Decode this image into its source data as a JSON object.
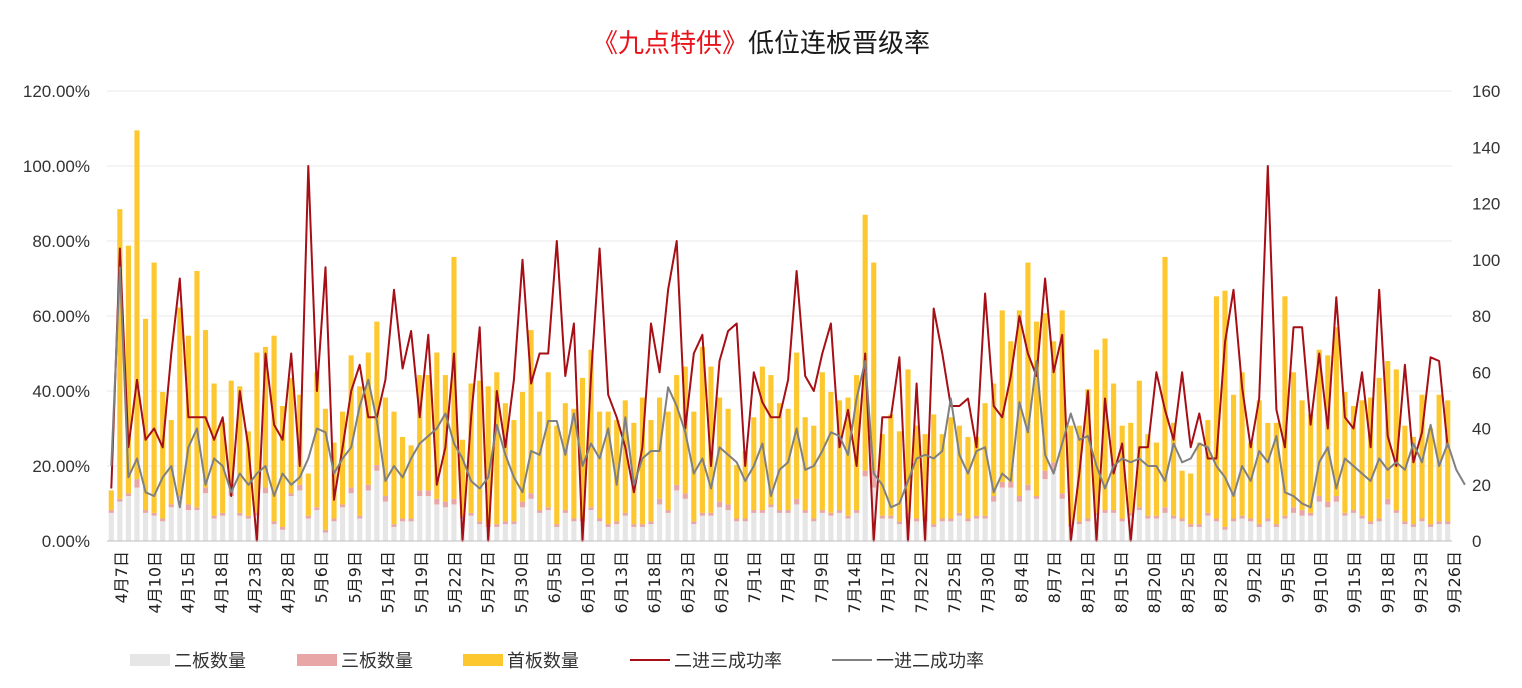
{
  "chart_data": {
    "type": "bar",
    "title_parts": [
      {
        "text": "《九点特供》",
        "color": "#e8141b"
      },
      {
        "text": "低位连板晋级率",
        "color": "#1a1a1a"
      }
    ],
    "y_left": {
      "min": 0,
      "max": 1.2,
      "ticks": [
        "0.00%",
        "20.00%",
        "40.00%",
        "60.00%",
        "80.00%",
        "100.00%",
        "120.00%"
      ]
    },
    "y_right": {
      "min": 0,
      "max": 160,
      "ticks": [
        "0",
        "20",
        "40",
        "60",
        "80",
        "100",
        "120",
        "140",
        "160"
      ]
    },
    "grid": true,
    "legend_position": "bottom",
    "x_tick_labels": [
      "4月7日",
      "4月10日",
      "4月15日",
      "4月18日",
      "4月23日",
      "4月28日",
      "5月6日",
      "5月9日",
      "5月14日",
      "5月19日",
      "5月22日",
      "5月27日",
      "5月30日",
      "6月5日",
      "6月10日",
      "6月13日",
      "6月18日",
      "6月23日",
      "6月26日",
      "7月1日",
      "7月4日",
      "7月9日",
      "7月14日",
      "7月17日",
      "7月22日",
      "7月25日",
      "7月30日",
      "8月4日",
      "8月7日",
      "8月12日",
      "8月15日",
      "8月20日",
      "8月25日",
      "8月28日",
      "9月2日",
      "9月5日",
      "9月10日",
      "9月15日",
      "9月18日",
      "9月23日",
      "9月26日"
    ],
    "series": [
      {
        "name": "二板数量",
        "kind": "bar",
        "axis": "right",
        "color": "#e6e6e6",
        "values": [
          10,
          14,
          16,
          19,
          10,
          9,
          7,
          12,
          15,
          11,
          11,
          17,
          8,
          9,
          16,
          9,
          8,
          9,
          17,
          6,
          4,
          16,
          18,
          8,
          11,
          3,
          7,
          12,
          17,
          8,
          18,
          25,
          14,
          5,
          7,
          7,
          16,
          16,
          13,
          12,
          13,
          8,
          9,
          6,
          5,
          5,
          6,
          6,
          12,
          15,
          10,
          11,
          5,
          10,
          7,
          7,
          11,
          7,
          5,
          6,
          9,
          5,
          5,
          6,
          13,
          10,
          18,
          15,
          6,
          9,
          9,
          12,
          11,
          7,
          7,
          10,
          10,
          12,
          10,
          10,
          13,
          10,
          7,
          10,
          9,
          10,
          8,
          10,
          23,
          19,
          8,
          8,
          6,
          8,
          7,
          7,
          5,
          7,
          7,
          9,
          7,
          8,
          8,
          14,
          19,
          19,
          14,
          18,
          15,
          22,
          25,
          15,
          5,
          6,
          7,
          9,
          10,
          10,
          7,
          9,
          11,
          8,
          8,
          10,
          8,
          7,
          5,
          5,
          9,
          7,
          4,
          7,
          8,
          7,
          5,
          7,
          5,
          8,
          10,
          9,
          9,
          14,
          12,
          14,
          9,
          10,
          8,
          6,
          7,
          13,
          10,
          6,
          5,
          7,
          5,
          6,
          6
        ]
      },
      {
        "name": "三板数量",
        "kind": "bar",
        "axis": "right",
        "color": "#e8a6a6",
        "values": [
          1,
          1,
          1,
          3,
          1,
          1,
          1,
          1,
          1,
          2,
          1,
          2,
          1,
          1,
          2,
          1,
          1,
          1,
          2,
          1,
          1,
          1,
          2,
          1,
          1,
          1,
          1,
          1,
          2,
          1,
          2,
          2,
          2,
          1,
          1,
          1,
          2,
          2,
          2,
          2,
          2,
          1,
          1,
          1,
          1,
          1,
          1,
          1,
          2,
          2,
          1,
          1,
          1,
          1,
          1,
          1,
          1,
          1,
          1,
          1,
          1,
          1,
          1,
          1,
          2,
          1,
          2,
          2,
          1,
          1,
          1,
          2,
          2,
          1,
          1,
          1,
          1,
          1,
          1,
          1,
          2,
          1,
          1,
          1,
          1,
          1,
          1,
          1,
          2,
          6,
          1,
          1,
          1,
          2,
          1,
          1,
          1,
          1,
          1,
          1,
          1,
          1,
          1,
          2,
          2,
          2,
          2,
          2,
          1,
          3,
          3,
          2,
          1,
          1,
          1,
          1,
          1,
          1,
          1,
          1,
          1,
          1,
          1,
          2,
          1,
          1,
          1,
          1,
          1,
          1,
          1,
          1,
          1,
          1,
          1,
          1,
          1,
          1,
          2,
          2,
          1,
          2,
          2,
          2,
          1,
          1,
          1,
          1,
          1,
          2,
          1,
          1,
          1,
          1,
          1,
          1,
          1
        ]
      },
      {
        "name": "首板数量",
        "kind": "bar",
        "axis": "right",
        "color": "#fdc82f",
        "values": [
          7,
          103,
          88,
          124,
          68,
          89,
          45,
          30,
          67,
          60,
          84,
          56,
          47,
          32,
          39,
          45,
          30,
          57,
          50,
          66,
          43,
          41,
          32,
          15,
          48,
          43,
          27,
          33,
          47,
          46,
          47,
          51,
          35,
          40,
          29,
          26,
          41,
          41,
          52,
          45,
          86,
          27,
          46,
          50,
          49,
          54,
          42,
          36,
          39,
          58,
          35,
          48,
          35,
          38,
          39,
          50,
          56,
          38,
          40,
          36,
          40,
          36,
          45,
          36,
          36,
          35,
          39,
          45,
          39,
          59,
          52,
          37,
          34,
          19,
          24,
          33,
          51,
          46,
          38,
          36,
          52,
          33,
          33,
          49,
          43,
          39,
          42,
          48,
          91,
          74,
          29,
          36,
          32,
          51,
          33,
          30,
          39,
          30,
          36,
          31,
          29,
          28,
          40,
          40,
          61,
          50,
          66,
          79,
          62,
          56,
          43,
          65,
          35,
          34,
          46,
          58,
          61,
          45,
          33,
          32,
          45,
          29,
          26,
          89,
          33,
          17,
          18,
          29,
          33,
          79,
          84,
          44,
          51,
          27,
          44,
          34,
          36,
          78,
          48,
          39,
          35,
          52,
          52,
          60,
          43,
          37,
          41,
          44,
          50,
          49,
          50,
          34,
          31,
          44,
          34,
          45,
          43
        ]
      },
      {
        "name": "二进三成功率",
        "kind": "line",
        "axis": "left",
        "color": "#a50f15",
        "values": [
          0.14,
          0.78,
          0.25,
          0.43,
          0.27,
          0.3,
          0.25,
          0.5,
          0.7,
          0.33,
          0.33,
          0.33,
          0.27,
          0.33,
          0.12,
          0.4,
          0.25,
          0.0,
          0.5,
          0.31,
          0.27,
          0.5,
          0.2,
          1.0,
          0.4,
          0.73,
          0.11,
          0.25,
          0.4,
          0.47,
          0.33,
          0.33,
          0.43,
          0.67,
          0.46,
          0.56,
          0.33,
          0.55,
          0.15,
          0.25,
          0.5,
          0.0,
          0.33,
          0.57,
          0.0,
          0.4,
          0.25,
          0.43,
          0.75,
          0.42,
          0.5,
          0.5,
          0.8,
          0.44,
          0.58,
          0.0,
          0.44,
          0.78,
          0.39,
          0.33,
          0.25,
          0.13,
          0.25,
          0.58,
          0.45,
          0.67,
          0.8,
          0.3,
          0.5,
          0.55,
          0.2,
          0.48,
          0.56,
          0.58,
          0.2,
          0.45,
          0.37,
          0.33,
          0.33,
          0.43,
          0.72,
          0.44,
          0.4,
          0.5,
          0.58,
          0.25,
          0.35,
          0.2,
          0.5,
          0.0,
          0.33,
          0.33,
          0.49,
          0.0,
          0.42,
          0.0,
          0.62,
          0.5,
          0.36,
          0.36,
          0.38,
          0.25,
          0.66,
          0.36,
          0.33,
          0.44,
          0.6,
          0.5,
          0.44,
          0.7,
          0.45,
          0.55,
          0.0,
          0.18,
          0.4,
          0.0,
          0.38,
          0.18,
          0.26,
          0.0,
          0.25,
          0.25,
          0.45,
          0.35,
          0.27,
          0.45,
          0.25,
          0.34,
          0.22,
          0.22,
          0.53,
          0.67,
          0.41,
          0.25,
          0.38,
          1.0,
          0.35,
          0.25,
          0.57,
          0.57,
          0.31,
          0.5,
          0.3,
          0.65,
          0.33,
          0.3,
          0.45,
          0.25,
          0.67,
          0.28,
          0.2,
          0.47,
          0.21,
          0.29,
          0.49,
          0.48,
          0.25
        ]
      },
      {
        "name": "一进二成功率",
        "kind": "line",
        "axis": "left",
        "color": "#808080",
        "values": [
          0.2,
          0.73,
          0.17,
          0.22,
          0.13,
          0.12,
          0.17,
          0.2,
          0.09,
          0.25,
          0.3,
          0.15,
          0.22,
          0.2,
          0.13,
          0.18,
          0.15,
          0.18,
          0.2,
          0.12,
          0.18,
          0.15,
          0.17,
          0.22,
          0.3,
          0.29,
          0.18,
          0.22,
          0.25,
          0.36,
          0.43,
          0.32,
          0.16,
          0.2,
          0.17,
          0.22,
          0.26,
          0.28,
          0.3,
          0.34,
          0.26,
          0.22,
          0.16,
          0.14,
          0.17,
          0.31,
          0.23,
          0.17,
          0.13,
          0.24,
          0.23,
          0.32,
          0.32,
          0.23,
          0.34,
          0.2,
          0.26,
          0.22,
          0.3,
          0.15,
          0.33,
          0.15,
          0.22,
          0.24,
          0.24,
          0.41,
          0.36,
          0.29,
          0.18,
          0.22,
          0.14,
          0.25,
          0.23,
          0.21,
          0.16,
          0.2,
          0.26,
          0.12,
          0.19,
          0.21,
          0.3,
          0.19,
          0.2,
          0.24,
          0.29,
          0.28,
          0.23,
          0.38,
          0.48,
          0.18,
          0.15,
          0.09,
          0.1,
          0.16,
          0.22,
          0.23,
          0.22,
          0.24,
          0.38,
          0.23,
          0.18,
          0.24,
          0.25,
          0.13,
          0.18,
          0.16,
          0.37,
          0.29,
          0.48,
          0.23,
          0.18,
          0.26,
          0.34,
          0.27,
          0.28,
          0.2,
          0.14,
          0.2,
          0.22,
          0.21,
          0.22,
          0.2,
          0.2,
          0.16,
          0.26,
          0.21,
          0.22,
          0.26,
          0.25,
          0.2,
          0.17,
          0.12,
          0.2,
          0.16,
          0.24,
          0.21,
          0.28,
          0.13,
          0.12,
          0.1,
          0.09,
          0.21,
          0.25,
          0.14,
          0.22,
          0.2,
          0.18,
          0.16,
          0.22,
          0.19,
          0.21,
          0.19,
          0.26,
          0.21,
          0.31,
          0.2,
          0.26,
          0.19,
          0.15
        ]
      }
    ]
  }
}
